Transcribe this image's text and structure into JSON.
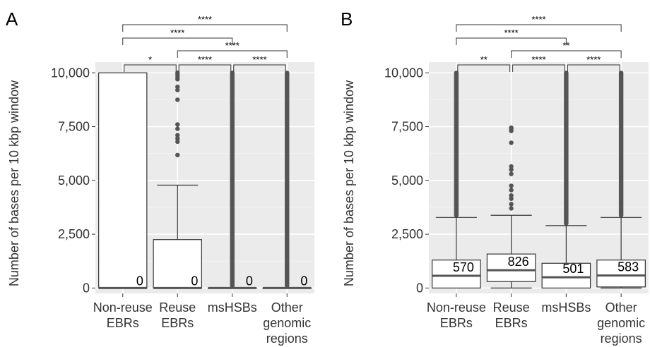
{
  "chart_data": [
    {
      "type": "box",
      "panel_label": "A",
      "ylabel": "Number of bases per 10 kbp window",
      "ylim": [
        -250,
        10500
      ],
      "yticks": [
        0,
        2500,
        5000,
        7500,
        10000
      ],
      "ytick_labels": [
        "0",
        "2,500",
        "5,000",
        "7,500",
        "10,000"
      ],
      "categories": [
        [
          "Non-reuse",
          "EBRs"
        ],
        [
          "Reuse",
          "EBRs"
        ],
        [
          "msHSBs"
        ],
        [
          "Other",
          "genomic",
          "regions"
        ]
      ],
      "boxes": [
        {
          "q1": 0,
          "median": 0,
          "q3": 10000,
          "whisker_low": 0,
          "whisker_high": 10000,
          "label": "0",
          "outliers": []
        },
        {
          "q1": 0,
          "median": 0,
          "q3": 2250,
          "whisker_low": 0,
          "whisker_high": 4780,
          "label": "0",
          "outliers": [
            6180,
            6800,
            6950,
            7100,
            7400,
            7600,
            8750,
            9200,
            9350,
            9700,
            9800,
            9900,
            10000
          ]
        },
        {
          "q1": 0,
          "median": 0,
          "q3": 0,
          "whisker_low": 0,
          "whisker_high": 0,
          "label": "0",
          "outlier_band": [
            0,
            10000
          ]
        },
        {
          "q1": 0,
          "median": 0,
          "q3": 0,
          "whisker_low": 0,
          "whisker_high": 0,
          "label": "0",
          "outlier_band": [
            0,
            10000
          ]
        }
      ],
      "significance": [
        {
          "from": 0,
          "to": 1,
          "label": "*"
        },
        {
          "from": 1,
          "to": 2,
          "label": "****"
        },
        {
          "from": 2,
          "to": 3,
          "label": "****"
        },
        {
          "from": 0,
          "to": 2,
          "label": "****"
        },
        {
          "from": 1,
          "to": 3,
          "label": "****"
        },
        {
          "from": 0,
          "to": 3,
          "label": "****"
        }
      ]
    },
    {
      "type": "box",
      "panel_label": "B",
      "ylabel": "Number of bases per 10 kbp window",
      "ylim": [
        -250,
        10500
      ],
      "yticks": [
        0,
        2500,
        5000,
        7500,
        10000
      ],
      "ytick_labels": [
        "0",
        "2,500",
        "5,000",
        "7,500",
        "10,000"
      ],
      "categories": [
        [
          "Non-reuse",
          "EBRs"
        ],
        [
          "Reuse",
          "EBRs"
        ],
        [
          "msHSBs"
        ],
        [
          "Other",
          "genomic",
          "regions"
        ]
      ],
      "boxes": [
        {
          "q1": 0,
          "median": 570,
          "q3": 1300,
          "whisker_low": 0,
          "whisker_high": 3280,
          "label": "570",
          "outlier_band": [
            3280,
            10000
          ]
        },
        {
          "q1": 300,
          "median": 826,
          "q3": 1580,
          "whisker_low": 0,
          "whisker_high": 3380,
          "label": "826",
          "outliers": [
            3700,
            3900,
            4150,
            4300,
            4550,
            4750,
            5300,
            5500,
            5650,
            6750,
            7300,
            7400,
            7450
          ]
        },
        {
          "q1": 0,
          "median": 501,
          "q3": 1150,
          "whisker_low": 0,
          "whisker_high": 2900,
          "label": "501",
          "outlier_band": [
            2900,
            10000
          ]
        },
        {
          "q1": 50,
          "median": 583,
          "q3": 1300,
          "whisker_low": 0,
          "whisker_high": 3280,
          "label": "583",
          "outlier_band": [
            3280,
            10000
          ]
        }
      ],
      "significance": [
        {
          "from": 0,
          "to": 1,
          "label": "**"
        },
        {
          "from": 1,
          "to": 2,
          "label": "****"
        },
        {
          "from": 2,
          "to": 3,
          "label": "****"
        },
        {
          "from": 0,
          "to": 2,
          "label": "****"
        },
        {
          "from": 1,
          "to": 3,
          "label": "**"
        },
        {
          "from": 0,
          "to": 3,
          "label": "****"
        }
      ]
    }
  ]
}
